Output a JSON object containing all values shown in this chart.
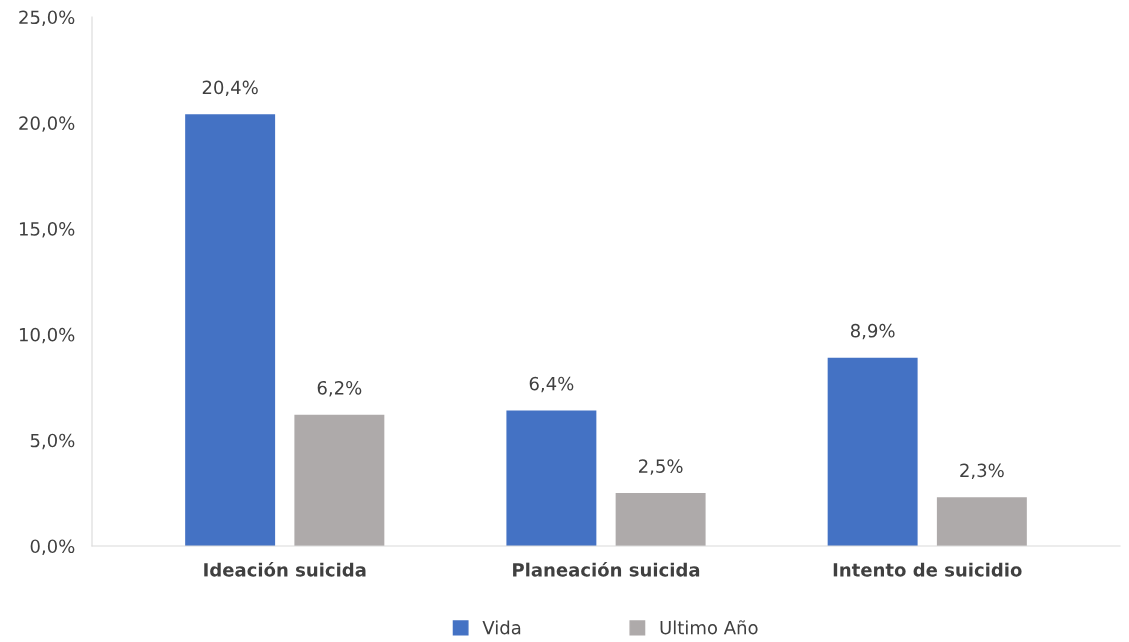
{
  "chart_data": {
    "type": "bar",
    "categories": [
      "Ideación suicida",
      "Planeación suicida",
      "Intento de suicidio"
    ],
    "series": [
      {
        "name": "Vida",
        "color": "#4472c4",
        "values": [
          20.4,
          6.4,
          8.9
        ],
        "value_labels": [
          "20,4%",
          "6,4%",
          "8,9%"
        ]
      },
      {
        "name": "Ultimo Año",
        "color": "#aeaaaa",
        "values": [
          6.2,
          2.5,
          2.3
        ],
        "value_labels": [
          "6,2%",
          "2,5%",
          "2,3%"
        ]
      }
    ],
    "ylim": [
      0,
      25
    ],
    "yticks": [
      {
        "value": 0,
        "label": "0,0%"
      },
      {
        "value": 5,
        "label": "5,0%"
      },
      {
        "value": 10,
        "label": "10,0%"
      },
      {
        "value": 15,
        "label": "15,0%"
      },
      {
        "value": 20,
        "label": "20,0%"
      },
      {
        "value": 25,
        "label": "25,0%"
      }
    ],
    "grid": false,
    "legend": "bottom"
  }
}
